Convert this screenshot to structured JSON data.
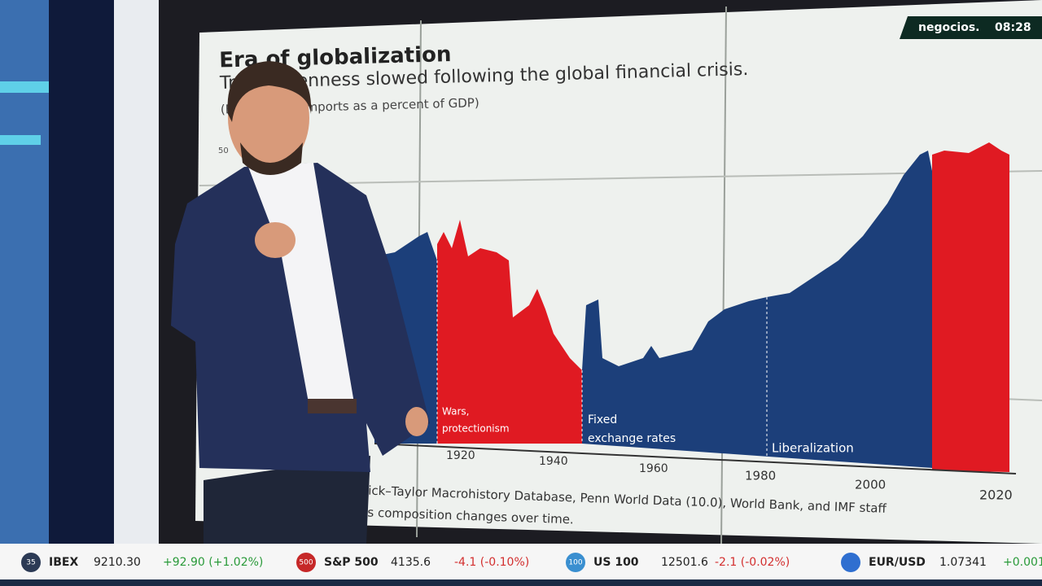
{
  "screen": {
    "logo": "negocios.",
    "time": "08:28"
  },
  "slide": {
    "title": "Era of globalization",
    "subtitle": "Trade openness slowed following the global financial crisis.",
    "note": "(Exports and imports as a percent of GDP)",
    "y_tick": "50",
    "x_ticks": [
      "1920",
      "1940",
      "1960",
      "1980",
      "2000",
      "2020"
    ],
    "eras": [
      [
        "Wars,",
        "protectionism"
      ],
      [
        "Fixed",
        "exchange rates"
      ],
      [
        "Liberalization"
      ]
    ],
    "source": [
      "ick–Taylor Macrohistory Database, Penn World Data (10.0), World Bank, and IMF staff",
      "'s composition changes over time."
    ]
  },
  "ticker": [
    {
      "badge": "35",
      "name": "IBEX",
      "price": "9210.30",
      "change": "+92.90 (+1.02%)"
    },
    {
      "badge": "500",
      "name": "S&P 500",
      "price": "4135.6",
      "change": "-4.1 (-0.10%)"
    },
    {
      "badge": "100",
      "name": "US 100",
      "price": "12501.6",
      "change": "-2.1 (-0.02%)"
    },
    {
      "name": "EUR/USD",
      "price": "1.07341",
      "change": "+0.001"
    }
  ]
}
